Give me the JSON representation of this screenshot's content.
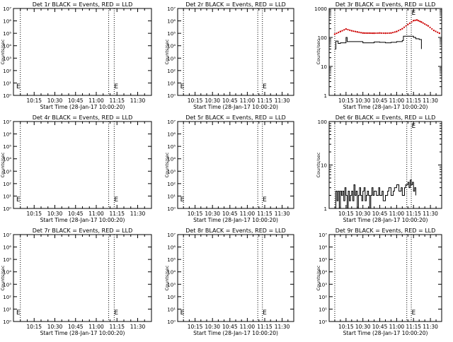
{
  "chart_data": [
    {
      "type": "line",
      "title": "Det 1r BLACK = Events, RED = LLD",
      "xlabel": "Start Time (28-Jan-17 10:00:20)",
      "ylabel": "Counts/sec",
      "yscale": "log",
      "ylim": [
        1,
        10000000
      ],
      "yticks": [
        "10⁰",
        "10¹",
        "10²",
        "10³",
        "10⁴",
        "10⁵",
        "10⁶",
        "10⁷"
      ],
      "xlim": [
        "10:00",
        "11:40"
      ],
      "xticks": [
        "10:15",
        "10:30",
        "10:45",
        "11:00",
        "11:15",
        "11:30"
      ],
      "vlines": [
        "10:05",
        "11:09",
        "11:13"
      ],
      "markers": [
        {
          "text": "E",
          "x": "10:01"
        },
        {
          "text": "E",
          "x": "11:12"
        }
      ],
      "series": []
    },
    {
      "type": "line",
      "title": "Det 2r BLACK = Events, RED = LLD",
      "xlabel": "Start Time (28-Jan-17 10:00:20)",
      "ylabel": "Counts/sec",
      "yscale": "log",
      "ylim": [
        1,
        10000000
      ],
      "yticks": [
        "10⁰",
        "10¹",
        "10²",
        "10³",
        "10⁴",
        "10⁵",
        "10⁶",
        "10⁷"
      ],
      "xlim": [
        "10:00",
        "11:40"
      ],
      "xticks": [
        "10:15",
        "10:30",
        "10:45",
        "11:00",
        "11:15",
        "11:30"
      ],
      "vlines": [
        "10:05",
        "11:09",
        "11:13"
      ],
      "markers": [
        {
          "text": "E",
          "x": "10:01"
        },
        {
          "text": "E",
          "x": "11:12"
        }
      ],
      "series": []
    },
    {
      "type": "line",
      "title": "Det 3r BLACK = Events, RED = LLD",
      "xlabel": "Start Time (28-Jan-17 10:00:20)",
      "ylabel": "Counts/sec",
      "yscale": "log",
      "ylim": [
        1,
        1000
      ],
      "yticks": [
        "1",
        "10",
        "100",
        "1000"
      ],
      "xlim": [
        "10:00",
        "11:40"
      ],
      "xticks": [
        "10:15",
        "10:30",
        "10:45",
        "11:00",
        "11:15",
        "11:30"
      ],
      "vlines": [
        "10:05",
        "11:09",
        "11:13"
      ],
      "markers": [
        {
          "text": "E",
          "x": "11:12"
        }
      ],
      "series": [
        {
          "color": "#000000",
          "style": "step",
          "points": [
            [
              "10:05",
              40
            ],
            [
              "10:06",
              75
            ],
            [
              "10:08",
              62
            ],
            [
              "10:10",
              65
            ],
            [
              "10:13",
              65
            ],
            [
              "10:15",
              100
            ],
            [
              "10:16",
              72
            ],
            [
              "10:20",
              72
            ],
            [
              "10:30",
              65
            ],
            [
              "10:40",
              70
            ],
            [
              "10:45",
              68
            ],
            [
              "10:50",
              65
            ],
            [
              "10:55",
              68
            ],
            [
              "11:00",
              72
            ],
            [
              "11:05",
              78
            ],
            [
              "11:06",
              110
            ],
            [
              "11:10",
              110
            ],
            [
              "11:13",
              110
            ],
            [
              "11:15",
              100
            ],
            [
              "11:17",
              90
            ],
            [
              "11:20",
              85
            ],
            [
              "11:22",
              40
            ]
          ]
        },
        {
          "color": "#cc0000",
          "style": "dotted",
          "points": [
            [
              "10:05",
              130
            ],
            [
              "10:10",
              160
            ],
            [
              "10:15",
              195
            ],
            [
              "10:20",
              170
            ],
            [
              "10:25",
              155
            ],
            [
              "10:30",
              142
            ],
            [
              "10:40",
              140
            ],
            [
              "10:45",
              142
            ],
            [
              "10:50",
              140
            ],
            [
              "10:55",
              142
            ],
            [
              "11:00",
              160
            ],
            [
              "11:05",
              200
            ],
            [
              "11:10",
              280
            ],
            [
              "11:15",
              380
            ],
            [
              "11:18",
              400
            ],
            [
              "11:22",
              340
            ],
            [
              "11:28",
              250
            ],
            [
              "11:33",
              175
            ],
            [
              "11:38",
              140
            ]
          ]
        }
      ]
    },
    {
      "type": "line",
      "title": "Det 4r BLACK = Events, RED = LLD",
      "xlabel": "Start Time (28-Jan-17 10:00:20)",
      "ylabel": "Counts/sec",
      "yscale": "log",
      "ylim": [
        1,
        10000000
      ],
      "yticks": [
        "10⁰",
        "10¹",
        "10²",
        "10³",
        "10⁴",
        "10⁵",
        "10⁶",
        "10⁷"
      ],
      "xlim": [
        "10:00",
        "11:40"
      ],
      "xticks": [
        "10:15",
        "10:30",
        "10:45",
        "11:00",
        "11:15",
        "11:30"
      ],
      "vlines": [
        "10:05",
        "11:09",
        "11:13"
      ],
      "markers": [
        {
          "text": "E",
          "x": "10:01"
        },
        {
          "text": "E",
          "x": "11:12"
        }
      ],
      "series": []
    },
    {
      "type": "line",
      "title": "Det 5r BLACK = Events, RED = LLD",
      "xlabel": "Start Time (28-Jan-17 10:00:20)",
      "ylabel": "Counts/sec",
      "yscale": "log",
      "ylim": [
        1,
        10000000
      ],
      "yticks": [
        "10⁰",
        "10¹",
        "10²",
        "10³",
        "10⁴",
        "10⁵",
        "10⁶",
        "10⁷"
      ],
      "xlim": [
        "10:00",
        "11:40"
      ],
      "xticks": [
        "10:15",
        "10:30",
        "10:45",
        "11:00",
        "11:15",
        "11:30"
      ],
      "vlines": [
        "10:05",
        "11:09",
        "11:13"
      ],
      "markers": [
        {
          "text": "E",
          "x": "10:01"
        },
        {
          "text": "E",
          "x": "11:12"
        }
      ],
      "series": []
    },
    {
      "type": "line",
      "title": "Det 6r BLACK = Events, RED = LLD",
      "xlabel": "Start Time (28-Jan-17 10:00:20)",
      "ylabel": "Counts/sec",
      "yscale": "log",
      "ylim": [
        1,
        100
      ],
      "yticks": [
        "1",
        "10",
        "100"
      ],
      "xlim": [
        "10:00",
        "11:40"
      ],
      "xticks": [
        "10:15",
        "10:30",
        "10:45",
        "11:00",
        "11:15",
        "11:30"
      ],
      "vlines": [
        "10:05",
        "11:09",
        "11:13"
      ],
      "markers": [
        {
          "text": "E",
          "x": "11:12"
        }
      ],
      "series": [
        {
          "color": "#000000",
          "style": "step",
          "points": [
            [
              "10:05",
              1
            ],
            [
              "10:06",
              2.5
            ],
            [
              "10:07",
              1.5
            ],
            [
              "10:08",
              2.5
            ],
            [
              "10:09",
              1
            ],
            [
              "10:10",
              2.5
            ],
            [
              "10:11",
              2
            ],
            [
              "10:12",
              2.5
            ],
            [
              "10:13",
              1.5
            ],
            [
              "10:14",
              3
            ],
            [
              "10:15",
              2
            ],
            [
              "10:16",
              1
            ],
            [
              "10:17",
              2.5
            ],
            [
              "10:18",
              1.5
            ],
            [
              "10:19",
              2
            ],
            [
              "10:20",
              2.5
            ],
            [
              "10:21",
              1.5
            ],
            [
              "10:22",
              3.5
            ],
            [
              "10:23",
              2
            ],
            [
              "10:24",
              2.5
            ],
            [
              "10:25",
              1
            ],
            [
              "10:26",
              2
            ],
            [
              "10:27",
              3
            ],
            [
              "10:28",
              2
            ],
            [
              "10:29",
              1.5
            ],
            [
              "10:30",
              2.5
            ],
            [
              "10:31",
              3
            ],
            [
              "10:32",
              1.5
            ],
            [
              "10:33",
              2
            ],
            [
              "10:34",
              2.5
            ],
            [
              "10:35",
              2
            ],
            [
              "10:36",
              1
            ],
            [
              "10:37",
              2
            ],
            [
              "10:38",
              3
            ],
            [
              "10:39",
              2
            ],
            [
              "10:40",
              2.5
            ],
            [
              "10:42",
              2
            ],
            [
              "10:44",
              3
            ],
            [
              "10:45",
              2
            ],
            [
              "10:47",
              2.5
            ],
            [
              "10:48",
              1.5
            ],
            [
              "10:50",
              2
            ],
            [
              "10:52",
              2.5
            ],
            [
              "10:53",
              3
            ],
            [
              "10:55",
              2
            ],
            [
              "10:57",
              2.5
            ],
            [
              "10:58",
              3
            ],
            [
              "11:00",
              3.5
            ],
            [
              "11:02",
              2.5
            ],
            [
              "11:04",
              3
            ],
            [
              "11:05",
              2
            ],
            [
              "11:07",
              3
            ],
            [
              "11:08",
              3.5
            ],
            [
              "11:10",
              4
            ],
            [
              "11:11",
              3
            ],
            [
              "11:12",
              4.5
            ],
            [
              "11:13",
              3.5
            ],
            [
              "11:14",
              4
            ],
            [
              "11:15",
              2.5
            ],
            [
              "11:16",
              3
            ],
            [
              "11:17",
              2
            ]
          ]
        }
      ]
    },
    {
      "type": "line",
      "title": "Det 7r BLACK = Events, RED = LLD",
      "xlabel": "Start Time (28-Jan-17 10:00:20)",
      "ylabel": "Counts/sec",
      "yscale": "log",
      "ylim": [
        1,
        10000000
      ],
      "yticks": [
        "10⁰",
        "10¹",
        "10²",
        "10³",
        "10⁴",
        "10⁵",
        "10⁶",
        "10⁷"
      ],
      "xlim": [
        "10:00",
        "11:40"
      ],
      "xticks": [
        "10:15",
        "10:30",
        "10:45",
        "11:00",
        "11:15",
        "11:30"
      ],
      "vlines": [
        "10:05",
        "11:09",
        "11:13"
      ],
      "markers": [
        {
          "text": "E",
          "x": "10:01"
        },
        {
          "text": "E",
          "x": "11:12"
        }
      ],
      "series": []
    },
    {
      "type": "line",
      "title": "Det 8r BLACK = Events, RED = LLD",
      "xlabel": "Start Time (28-Jan-17 10:00:20)",
      "ylabel": "Counts/sec",
      "yscale": "log",
      "ylim": [
        1,
        10000000
      ],
      "yticks": [
        "10⁰",
        "10¹",
        "10²",
        "10³",
        "10⁴",
        "10⁵",
        "10⁶",
        "10⁷"
      ],
      "xlim": [
        "10:00",
        "11:40"
      ],
      "xticks": [
        "10:15",
        "10:30",
        "10:45",
        "11:00",
        "11:15",
        "11:30"
      ],
      "vlines": [
        "10:05",
        "11:09",
        "11:13"
      ],
      "markers": [
        {
          "text": "E",
          "x": "10:01"
        },
        {
          "text": "E",
          "x": "11:12"
        }
      ],
      "series": []
    },
    {
      "type": "line",
      "title": "Det 9r BLACK = Events, RED = LLD",
      "xlabel": "Start Time (28-Jan-17 10:00:20)",
      "ylabel": "Counts/sec",
      "yscale": "log",
      "ylim": [
        1,
        10000000
      ],
      "yticks": [
        "10⁰",
        "10¹",
        "10²",
        "10³",
        "10⁴",
        "10⁵",
        "10⁶",
        "10⁷"
      ],
      "xlim": [
        "10:00",
        "11:40"
      ],
      "xticks": [
        "10:15",
        "10:30",
        "10:45",
        "11:00",
        "11:15",
        "11:30"
      ],
      "vlines": [
        "10:05",
        "11:09",
        "11:13"
      ],
      "markers": [
        {
          "text": "E",
          "x": "11:12"
        }
      ],
      "series": []
    }
  ]
}
